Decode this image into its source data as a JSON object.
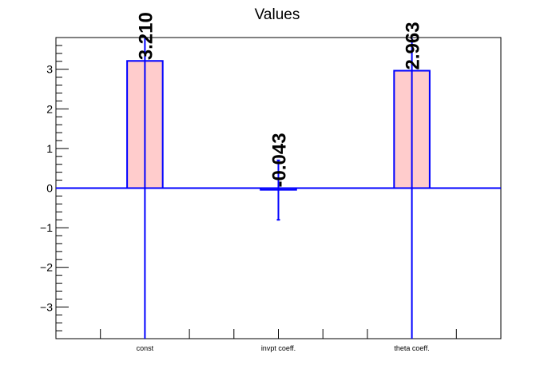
{
  "chart_data": {
    "type": "bar",
    "title": "Values",
    "categories": [
      "const",
      "invpt coeff.",
      "theta coeff."
    ],
    "values": [
      3.21,
      -0.043,
      2.963
    ],
    "value_labels": [
      "3.210",
      "-0.043",
      "2.963"
    ],
    "error_low": [
      -3.8,
      -0.8,
      -3.8
    ],
    "error_high": [
      3.8,
      0.7,
      3.8
    ],
    "ylim": [
      -3.8,
      3.8
    ],
    "yticks": [
      -3,
      -2,
      -1,
      0,
      1,
      2,
      3
    ],
    "ytick_labels": [
      "−3",
      "−2",
      "−1",
      "0",
      "1",
      "2",
      "3"
    ],
    "xlabel": "",
    "ylabel": "",
    "grid": false,
    "colors": {
      "bar_fill": "#ffcccc",
      "bar_edge": "#0000ff",
      "error": "#0000ff",
      "axis": "#000000"
    }
  }
}
